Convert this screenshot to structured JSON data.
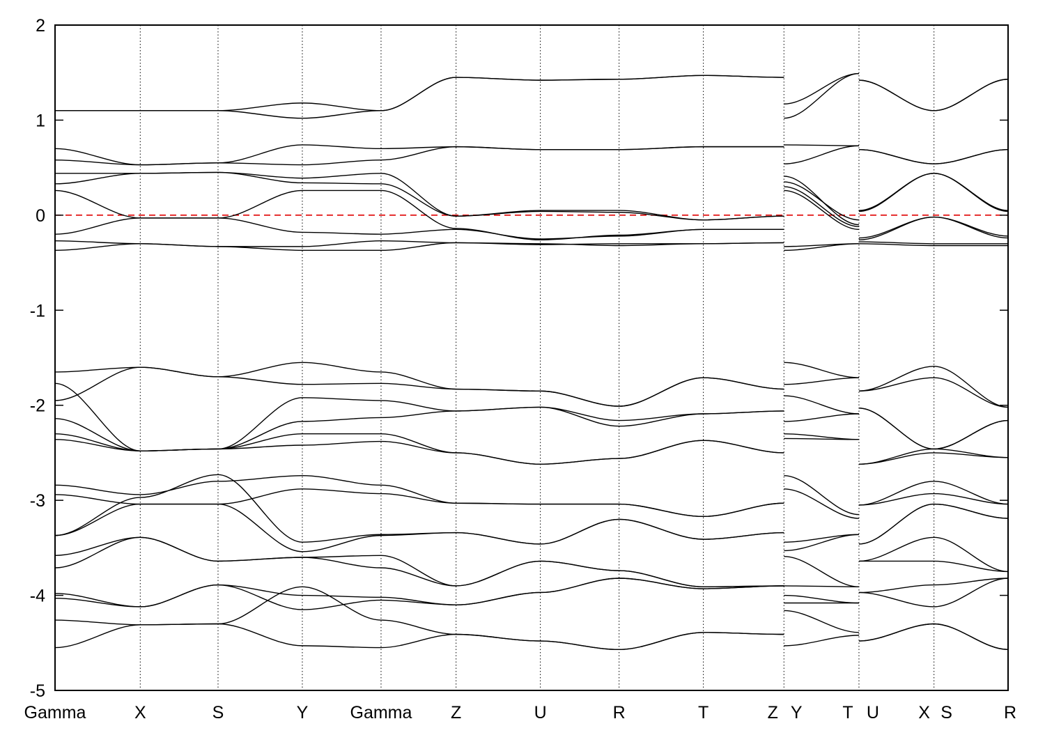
{
  "chart_data": {
    "type": "line",
    "title": "",
    "xlabel": "",
    "ylabel": "",
    "ylim": [
      -5,
      2
    ],
    "yticks": [
      -5,
      -4,
      -3,
      -2,
      -1,
      0,
      1,
      2
    ],
    "ytick_labels": [
      "-5",
      "-4",
      "-3",
      "-2",
      "-1",
      "0",
      "1",
      "2"
    ],
    "xlim": [
      0,
      10.29
    ],
    "kpoints": [
      {
        "label": "Gamma",
        "x": 0
      },
      {
        "label": "X",
        "x": 0.92
      },
      {
        "label": "S",
        "x": 1.76
      },
      {
        "label": "Y",
        "x": 2.67
      },
      {
        "label": "Gamma",
        "x": 3.52
      },
      {
        "label": "Z",
        "x": 4.33
      },
      {
        "label": "U",
        "x": 5.24
      },
      {
        "label": "R",
        "x": 6.09
      },
      {
        "label": "T",
        "x": 7.0
      },
      {
        "label": "Z",
        "x": 7.87
      },
      {
        "label": "Y",
        "x": 7.87
      },
      {
        "label": "T",
        "x": 8.68
      },
      {
        "label": "U",
        "x": 8.68
      },
      {
        "label": "X",
        "x": 9.49
      },
      {
        "label": "S",
        "x": 9.49
      },
      {
        "label": "R",
        "x": 10.29
      }
    ],
    "vertical_lines": [
      0.92,
      1.76,
      2.67,
      3.52,
      4.33,
      5.24,
      6.09,
      7.0,
      7.87,
      8.68,
      9.49
    ],
    "fermi_level": {
      "y": 0,
      "color": "#e00000",
      "style": "dashed"
    },
    "grid": false,
    "line_color": "#000000",
    "segments": [
      {
        "x": [
          0,
          0.92,
          1.76,
          2.67,
          3.52,
          4.33,
          5.24,
          6.09,
          7.0,
          7.87
        ],
        "bands": [
          [
            1.1,
            1.1,
            1.1,
            1.02,
            1.1,
            1.45,
            1.42,
            1.43,
            1.47,
            1.45
          ],
          [
            1.1,
            1.1,
            1.1,
            1.18,
            1.1,
            1.45,
            1.42,
            1.43,
            1.47,
            1.45
          ],
          [
            0.7,
            0.53,
            0.55,
            0.74,
            0.7,
            0.72,
            0.69,
            0.69,
            0.72,
            0.72
          ],
          [
            0.58,
            0.53,
            0.55,
            0.53,
            0.58,
            0.72,
            0.69,
            0.69,
            0.72,
            0.72
          ],
          [
            0.44,
            0.44,
            0.45,
            0.39,
            0.44,
            -0.01,
            0.05,
            0.05,
            -0.05,
            -0.01
          ],
          [
            0.33,
            0.44,
            0.45,
            0.34,
            0.33,
            -0.01,
            0.04,
            0.03,
            -0.05,
            -0.01
          ],
          [
            0.26,
            -0.03,
            -0.03,
            0.26,
            0.26,
            -0.14,
            -0.26,
            -0.21,
            -0.15,
            -0.15
          ],
          [
            -0.2,
            -0.03,
            -0.03,
            -0.18,
            -0.2,
            -0.15,
            -0.25,
            -0.22,
            -0.15,
            -0.15
          ],
          [
            -0.27,
            -0.3,
            -0.33,
            -0.33,
            -0.27,
            -0.29,
            -0.31,
            -0.3,
            -0.3,
            -0.29
          ],
          [
            -0.37,
            -0.3,
            -0.33,
            -0.37,
            -0.37,
            -0.29,
            -0.3,
            -0.32,
            -0.3,
            -0.29
          ],
          [
            -1.65,
            -1.6,
            -1.7,
            -1.55,
            -1.65,
            -1.83,
            -1.85,
            -2.01,
            -1.71,
            -1.83
          ],
          [
            -1.95,
            -1.6,
            -1.7,
            -1.78,
            -1.77,
            -1.83,
            -1.85,
            -2.01,
            -1.71,
            -1.83
          ],
          [
            -1.77,
            -2.48,
            -2.46,
            -1.92,
            -1.95,
            -2.06,
            -2.02,
            -2.16,
            -2.09,
            -2.06
          ],
          [
            -2.14,
            -2.48,
            -2.46,
            -2.17,
            -2.13,
            -2.06,
            -2.02,
            -2.22,
            -2.09,
            -2.06
          ],
          [
            -2.3,
            -2.48,
            -2.46,
            -2.3,
            -2.3,
            -2.5,
            -2.62,
            -2.56,
            -2.37,
            -2.5
          ],
          [
            -2.36,
            -2.48,
            -2.46,
            -2.42,
            -2.38,
            -2.5,
            -2.62,
            -2.56,
            -2.37,
            -2.5
          ],
          [
            -2.84,
            -2.94,
            -2.8,
            -2.74,
            -2.84,
            -3.03,
            -3.04,
            -3.04,
            -3.17,
            -3.03
          ],
          [
            -2.94,
            -3.04,
            -3.04,
            -2.88,
            -2.93,
            -3.03,
            -3.04,
            -3.04,
            -3.17,
            -3.03
          ],
          [
            -3.37,
            -2.97,
            -2.73,
            -3.44,
            -3.36,
            -3.34,
            -3.46,
            -3.2,
            -3.41,
            -3.34
          ],
          [
            -3.37,
            -3.04,
            -3.04,
            -3.54,
            -3.37,
            -3.34,
            -3.46,
            -3.2,
            -3.41,
            -3.34
          ],
          [
            -3.58,
            -3.39,
            -3.64,
            -3.6,
            -3.58,
            -3.9,
            -3.64,
            -3.74,
            -3.91,
            -3.9
          ],
          [
            -3.71,
            -3.39,
            -3.64,
            -3.6,
            -3.71,
            -3.9,
            -3.64,
            -3.74,
            -3.91,
            -3.9
          ],
          [
            -3.98,
            -4.12,
            -3.89,
            -4.0,
            -4.02,
            -4.1,
            -3.97,
            -3.82,
            -3.93,
            -3.9
          ],
          [
            -4.03,
            -4.12,
            -3.89,
            -4.15,
            -4.05,
            -4.1,
            -3.97,
            -3.82,
            -3.93,
            -3.9
          ],
          [
            -4.26,
            -4.31,
            -4.3,
            -3.91,
            -4.26,
            -4.41,
            -4.48,
            -4.57,
            -4.39,
            -4.41
          ],
          [
            -4.55,
            -4.31,
            -4.3,
            -4.53,
            -4.55,
            -4.41,
            -4.48,
            -4.57,
            -4.39,
            -4.41
          ]
        ]
      },
      {
        "x": [
          7.87,
          8.68
        ],
        "bands": [
          [
            1.02,
            1.49
          ],
          [
            1.17,
            1.49
          ],
          [
            0.74,
            0.73
          ],
          [
            0.54,
            0.73
          ],
          [
            0.41,
            -0.1
          ],
          [
            0.35,
            -0.05
          ],
          [
            0.3,
            -0.12
          ],
          [
            0.26,
            -0.15
          ],
          [
            -0.33,
            -0.3
          ],
          [
            -0.37,
            -0.3
          ],
          [
            -1.55,
            -1.71
          ],
          [
            -1.78,
            -1.71
          ],
          [
            -1.9,
            -2.09
          ],
          [
            -2.17,
            -2.09
          ],
          [
            -2.3,
            -2.36
          ],
          [
            -2.35,
            -2.36
          ],
          [
            -2.74,
            -3.15
          ],
          [
            -2.88,
            -3.19
          ],
          [
            -3.44,
            -3.36
          ],
          [
            -3.53,
            -3.36
          ],
          [
            -3.59,
            -3.91
          ],
          [
            -3.9,
            -3.91
          ],
          [
            -4.0,
            -4.08
          ],
          [
            -4.08,
            -4.08
          ],
          [
            -4.16,
            -4.39
          ],
          [
            -4.53,
            -4.42
          ]
        ]
      },
      {
        "x": [
          8.68,
          9.49,
          10.29
        ],
        "bands": [
          [
            1.42,
            1.1,
            1.43
          ],
          [
            1.42,
            1.1,
            1.43
          ],
          [
            0.69,
            0.54,
            0.69
          ],
          [
            0.69,
            0.54,
            0.69
          ],
          [
            0.05,
            0.44,
            0.05
          ],
          [
            0.04,
            0.44,
            0.04
          ],
          [
            -0.24,
            -0.02,
            -0.22
          ],
          [
            -0.26,
            -0.02,
            -0.24
          ],
          [
            -0.28,
            -0.3,
            -0.3
          ],
          [
            -0.3,
            -0.32,
            -0.32
          ],
          [
            -1.85,
            -1.59,
            -2.02
          ],
          [
            -1.85,
            -1.71,
            -2.02
          ],
          [
            -2.03,
            -2.46,
            -2.16
          ],
          [
            -2.03,
            -2.46,
            -2.16
          ],
          [
            -2.62,
            -2.46,
            -2.55
          ],
          [
            -2.62,
            -2.5,
            -2.55
          ],
          [
            -3.05,
            -2.93,
            -3.04
          ],
          [
            -3.05,
            -2.8,
            -3.04
          ],
          [
            -3.46,
            -3.04,
            -3.19
          ],
          [
            -3.46,
            -3.04,
            -3.19
          ],
          [
            -3.64,
            -3.39,
            -3.75
          ],
          [
            -3.64,
            -3.64,
            -3.75
          ],
          [
            -3.97,
            -4.12,
            -3.82
          ],
          [
            -3.97,
            -3.89,
            -3.82
          ],
          [
            -4.48,
            -4.3,
            -4.57
          ],
          [
            -4.48,
            -4.3,
            -4.57
          ]
        ]
      }
    ]
  }
}
